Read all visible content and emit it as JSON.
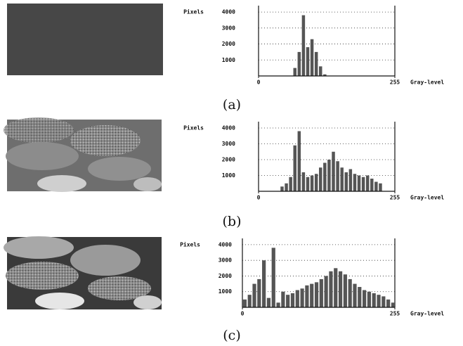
{
  "chart_data": [
    {
      "type": "histogram",
      "caption": "(a)",
      "y_label": "Pixels",
      "x_label": "Gray-level",
      "color": "#555555",
      "bins": [
        0,
        8,
        16,
        24,
        32,
        40,
        48,
        56,
        64,
        72,
        80,
        88,
        96,
        104,
        112,
        120,
        128,
        136,
        144,
        152,
        160,
        168,
        176,
        184,
        192,
        200,
        208,
        216,
        224,
        232,
        240,
        248,
        255
      ],
      "values": [
        0,
        0,
        0,
        0,
        0,
        0,
        0,
        0,
        500,
        1500,
        3800,
        1800,
        2300,
        1500,
        600,
        100,
        0,
        0,
        0,
        0,
        0,
        0,
        0,
        0,
        0,
        0,
        0,
        0,
        0,
        0,
        0,
        0
      ],
      "xlim": [
        0,
        255
      ],
      "xticks": [
        0,
        255
      ],
      "ylim": [
        0,
        4400
      ],
      "yticks": [
        1000,
        2000,
        3000,
        4000
      ],
      "grid": true
    },
    {
      "type": "histogram",
      "caption": "(b)",
      "y_label": "Pixels",
      "x_label": "Gray-level",
      "color": "#555555",
      "bins": [
        0,
        8,
        16,
        24,
        32,
        40,
        48,
        56,
        64,
        72,
        80,
        88,
        96,
        104,
        112,
        120,
        128,
        136,
        144,
        152,
        160,
        168,
        176,
        184,
        192,
        200,
        208,
        216,
        224,
        232,
        240,
        248,
        255
      ],
      "values": [
        0,
        0,
        0,
        0,
        0,
        300,
        500,
        900,
        2900,
        3800,
        1200,
        900,
        1000,
        1100,
        1500,
        1800,
        2000,
        2500,
        1900,
        1500,
        1200,
        1400,
        1100,
        1000,
        900,
        1000,
        800,
        600,
        500,
        0,
        0,
        0
      ],
      "xlim": [
        0,
        255
      ],
      "xticks": [
        0,
        255
      ],
      "ylim": [
        0,
        4400
      ],
      "yticks": [
        1000,
        2000,
        3000,
        4000
      ],
      "grid": true
    },
    {
      "type": "histogram",
      "caption": "(c)",
      "y_label": "Pixels",
      "x_label": "Gray-level",
      "color": "#555555",
      "bins": [
        0,
        8,
        16,
        24,
        32,
        40,
        48,
        56,
        64,
        72,
        80,
        88,
        96,
        104,
        112,
        120,
        128,
        136,
        144,
        152,
        160,
        168,
        176,
        184,
        192,
        200,
        208,
        216,
        224,
        232,
        240,
        248,
        255
      ],
      "values": [
        500,
        800,
        1500,
        1800,
        3000,
        600,
        3800,
        300,
        1000,
        800,
        900,
        1100,
        1200,
        1400,
        1500,
        1600,
        1800,
        2000,
        2300,
        2500,
        2300,
        2100,
        1800,
        1500,
        1300,
        1100,
        1000,
        900,
        800,
        700,
        500,
        300
      ],
      "xlim": [
        0,
        255
      ],
      "xticks": [
        0,
        255
      ],
      "ylim": [
        0,
        4400
      ],
      "yticks": [
        1000,
        2000,
        3000,
        4000
      ],
      "grid": true
    }
  ]
}
